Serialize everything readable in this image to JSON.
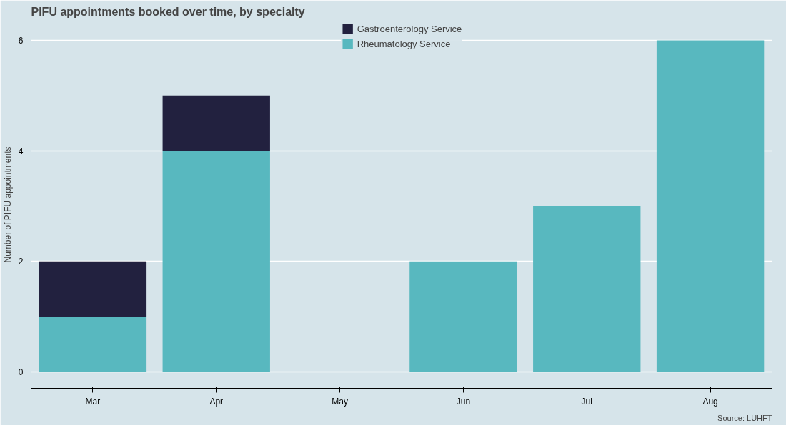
{
  "chart_data": {
    "type": "bar",
    "title": "PIFU appointments booked over time, by specialty",
    "ylabel": "Number of PIFU appointments",
    "categories": [
      "Mar",
      "Apr",
      "May",
      "Jun",
      "Jul",
      "Aug"
    ],
    "stacked": true,
    "series": [
      {
        "name": "Rheumatology Service",
        "color": "#58b8bf",
        "values": [
          1,
          4,
          null,
          2,
          3,
          6
        ]
      },
      {
        "name": "Gastroenterology Service",
        "color": "#22213f",
        "values": [
          1,
          1,
          null,
          null,
          null,
          null
        ]
      }
    ],
    "ylim": [
      -0.3,
      6.35
    ],
    "yticks": [
      0,
      2,
      4,
      6
    ],
    "grid": "y",
    "legend": "top",
    "annotations": [
      "Source: LUHFT"
    ]
  }
}
